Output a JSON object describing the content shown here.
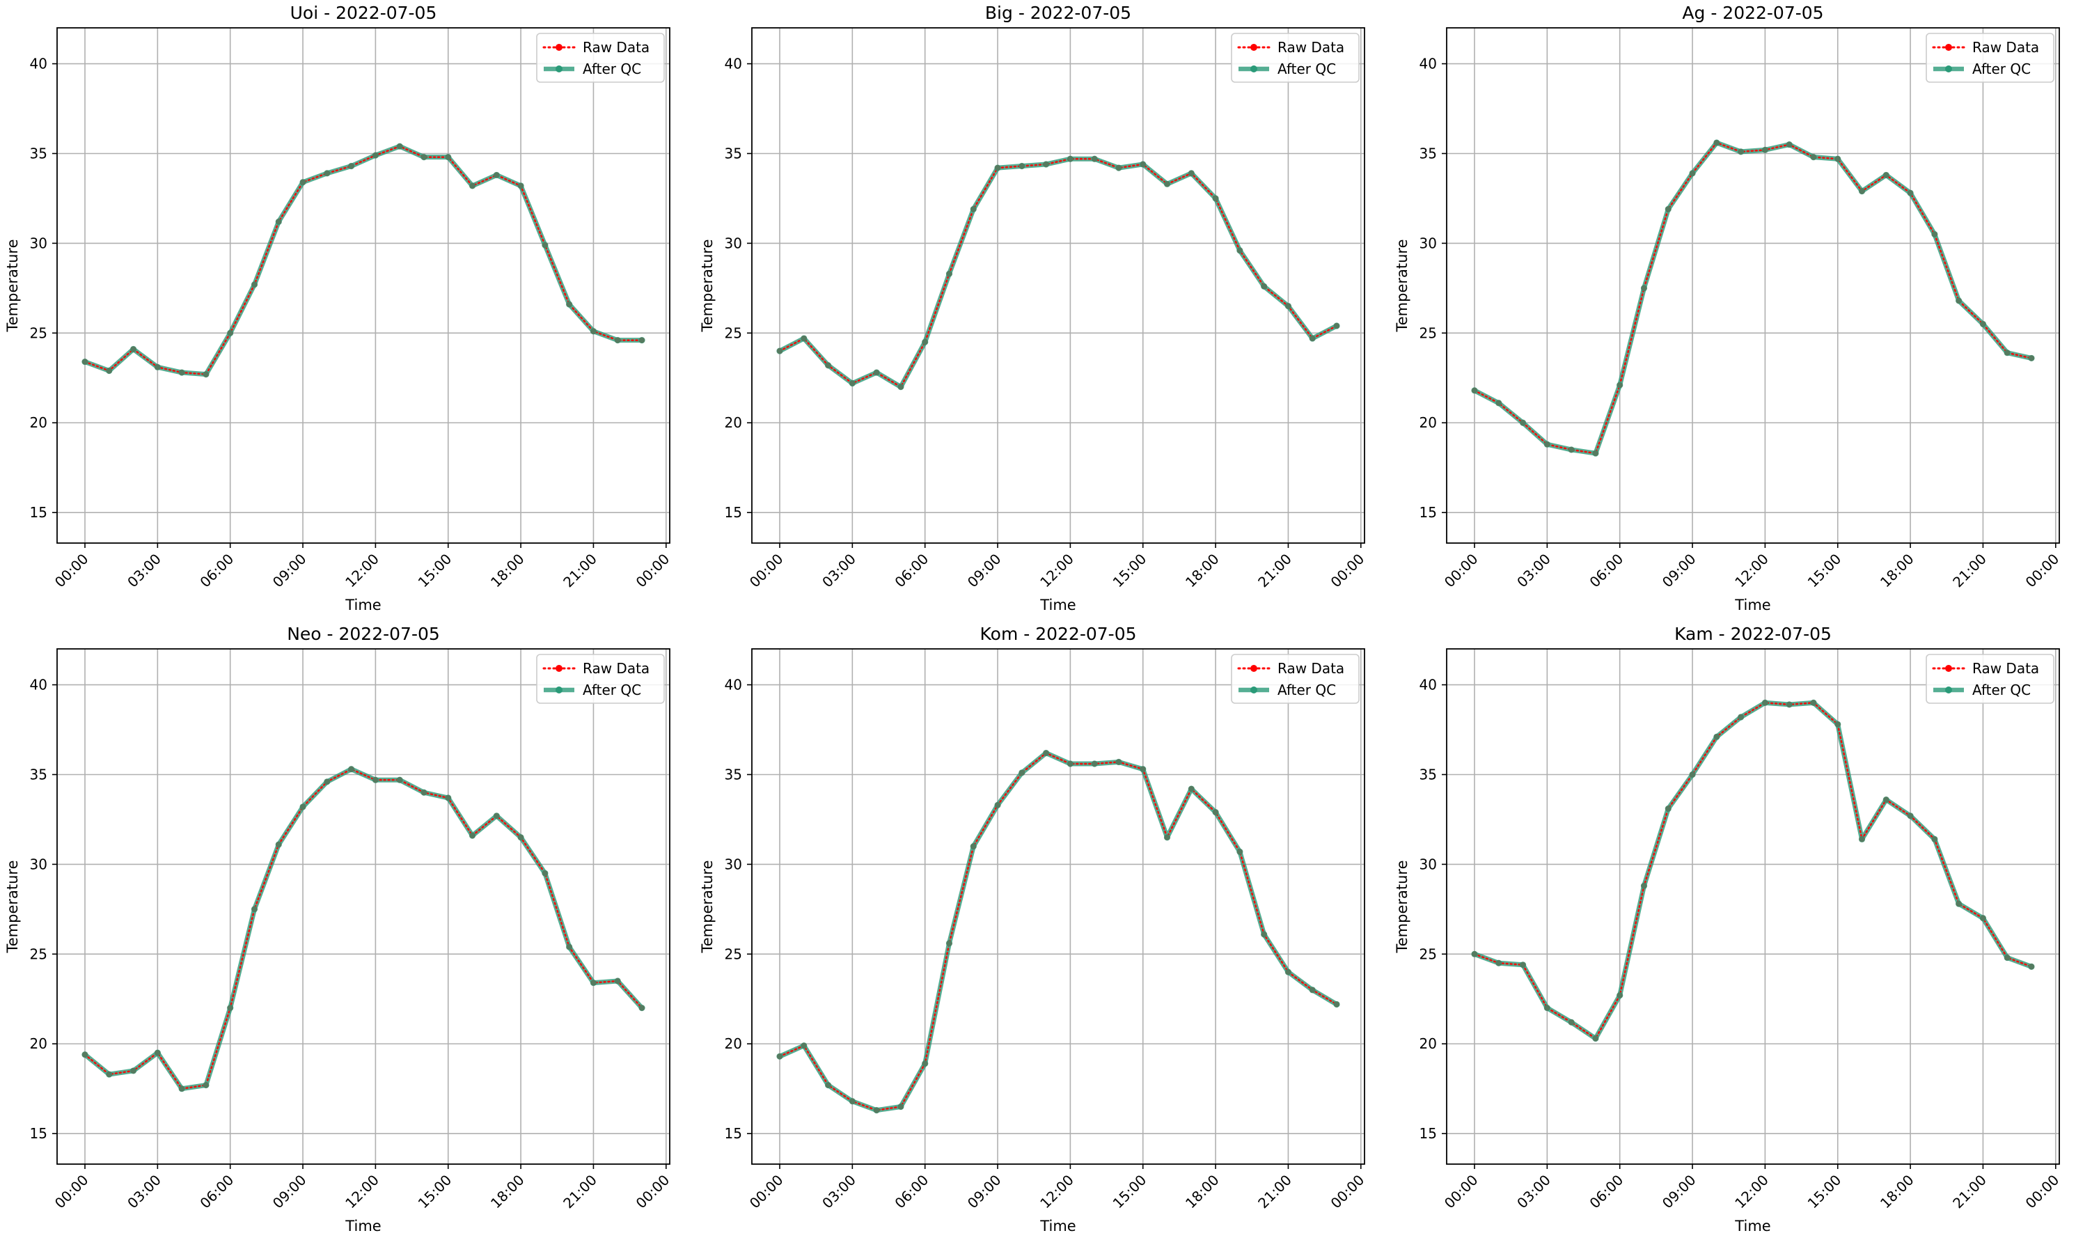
{
  "figure": {
    "background": "#ffffff"
  },
  "chart_data": [
    {
      "type": "line",
      "title": "Uoi - 2022-07-05",
      "xlabel": "Time",
      "ylabel": "Temperature",
      "xlim": [
        -1.15,
        24.15
      ],
      "ylim": [
        13.3,
        42.0
      ],
      "yticks": [
        15,
        20,
        25,
        30,
        35,
        40
      ],
      "xticks": [
        0,
        3,
        6,
        9,
        12,
        15,
        18,
        21,
        24
      ],
      "xtick_labels": [
        "00:00",
        "03:00",
        "06:00",
        "09:00",
        "12:00",
        "15:00",
        "18:00",
        "21:00",
        "00:00"
      ],
      "grid": true,
      "legend": "top-right",
      "x": [
        0,
        1,
        2,
        3,
        4,
        5,
        6,
        7,
        8,
        9,
        10,
        11,
        12,
        13,
        14,
        15,
        16,
        17,
        18,
        19,
        20,
        21,
        22,
        23
      ],
      "series": [
        {
          "name": "Raw Data",
          "color": "#ff0000",
          "style": "dotted",
          "values": [
            23.4,
            22.9,
            24.1,
            23.1,
            22.8,
            22.7,
            25.0,
            27.7,
            31.2,
            33.4,
            33.9,
            34.3,
            34.9,
            35.4,
            34.8,
            34.8,
            33.2,
            33.8,
            33.2,
            29.9,
            26.6,
            25.1,
            24.6,
            24.6
          ]
        },
        {
          "name": "After QC",
          "color": "#2a9a78",
          "style": "solid",
          "values": [
            23.4,
            22.9,
            24.1,
            23.1,
            22.8,
            22.7,
            25.0,
            27.7,
            31.2,
            33.4,
            33.9,
            34.3,
            34.9,
            35.4,
            34.8,
            34.8,
            33.2,
            33.8,
            33.2,
            29.9,
            26.6,
            25.1,
            24.6,
            24.6
          ]
        }
      ]
    },
    {
      "type": "line",
      "title": "Big - 2022-07-05",
      "xlabel": "Time",
      "ylabel": "Temperature",
      "xlim": [
        -1.15,
        24.15
      ],
      "ylim": [
        13.3,
        42.0
      ],
      "yticks": [
        15,
        20,
        25,
        30,
        35,
        40
      ],
      "xticks": [
        0,
        3,
        6,
        9,
        12,
        15,
        18,
        21,
        24
      ],
      "xtick_labels": [
        "00:00",
        "03:00",
        "06:00",
        "09:00",
        "12:00",
        "15:00",
        "18:00",
        "21:00",
        "00:00"
      ],
      "grid": true,
      "legend": "top-right",
      "x": [
        0,
        1,
        2,
        3,
        4,
        5,
        6,
        7,
        8,
        9,
        10,
        11,
        12,
        13,
        14,
        15,
        16,
        17,
        18,
        19,
        20,
        21,
        22,
        23
      ],
      "series": [
        {
          "name": "Raw Data",
          "color": "#ff0000",
          "style": "dotted",
          "values": [
            24.0,
            24.7,
            23.2,
            22.2,
            22.8,
            22.0,
            24.5,
            28.3,
            31.9,
            34.2,
            34.3,
            34.4,
            34.7,
            34.7,
            34.2,
            34.4,
            33.3,
            33.9,
            32.5,
            29.6,
            27.6,
            26.5,
            24.7,
            25.4
          ]
        },
        {
          "name": "After QC",
          "color": "#2a9a78",
          "style": "solid",
          "values": [
            24.0,
            24.7,
            23.2,
            22.2,
            22.8,
            22.0,
            24.5,
            28.3,
            31.9,
            34.2,
            34.3,
            34.4,
            34.7,
            34.7,
            34.2,
            34.4,
            33.3,
            33.9,
            32.5,
            29.6,
            27.6,
            26.5,
            24.7,
            25.4
          ]
        }
      ]
    },
    {
      "type": "line",
      "title": "Ag - 2022-07-05",
      "xlabel": "Time",
      "ylabel": "Temperature",
      "xlim": [
        -1.15,
        24.15
      ],
      "ylim": [
        13.3,
        42.0
      ],
      "yticks": [
        15,
        20,
        25,
        30,
        35,
        40
      ],
      "xticks": [
        0,
        3,
        6,
        9,
        12,
        15,
        18,
        21,
        24
      ],
      "xtick_labels": [
        "00:00",
        "03:00",
        "06:00",
        "09:00",
        "12:00",
        "15:00",
        "18:00",
        "21:00",
        "00:00"
      ],
      "grid": true,
      "legend": "top-right",
      "x": [
        0,
        1,
        2,
        3,
        4,
        5,
        6,
        7,
        8,
        9,
        10,
        11,
        12,
        13,
        14,
        15,
        16,
        17,
        18,
        19,
        20,
        21,
        22,
        23
      ],
      "series": [
        {
          "name": "Raw Data",
          "color": "#ff0000",
          "style": "dotted",
          "values": [
            21.8,
            21.1,
            20.0,
            18.8,
            18.5,
            18.3,
            22.1,
            27.5,
            31.9,
            33.9,
            35.6,
            35.1,
            35.2,
            35.5,
            34.8,
            34.7,
            32.9,
            33.8,
            32.8,
            30.5,
            26.8,
            25.5,
            23.9,
            23.6
          ]
        },
        {
          "name": "After QC",
          "color": "#2a9a78",
          "style": "solid",
          "values": [
            21.8,
            21.1,
            20.0,
            18.8,
            18.5,
            18.3,
            22.1,
            27.5,
            31.9,
            33.9,
            35.6,
            35.1,
            35.2,
            35.5,
            34.8,
            34.7,
            32.9,
            33.8,
            32.8,
            30.5,
            26.8,
            25.5,
            23.9,
            23.6
          ]
        }
      ]
    },
    {
      "type": "line",
      "title": "Neo - 2022-07-05",
      "xlabel": "Time",
      "ylabel": "Temperature",
      "xlim": [
        -1.15,
        24.15
      ],
      "ylim": [
        13.3,
        42.0
      ],
      "yticks": [
        15,
        20,
        25,
        30,
        35,
        40
      ],
      "xticks": [
        0,
        3,
        6,
        9,
        12,
        15,
        18,
        21,
        24
      ],
      "xtick_labels": [
        "00:00",
        "03:00",
        "06:00",
        "09:00",
        "12:00",
        "15:00",
        "18:00",
        "21:00",
        "00:00"
      ],
      "grid": true,
      "legend": "top-right",
      "x": [
        0,
        1,
        2,
        3,
        4,
        5,
        6,
        7,
        8,
        9,
        10,
        11,
        12,
        13,
        14,
        15,
        16,
        17,
        18,
        19,
        20,
        21,
        22,
        23
      ],
      "series": [
        {
          "name": "Raw Data",
          "color": "#ff0000",
          "style": "dotted",
          "values": [
            19.4,
            18.3,
            18.5,
            19.5,
            17.5,
            17.7,
            22.0,
            27.5,
            31.1,
            33.2,
            34.6,
            35.3,
            34.7,
            34.7,
            34.0,
            33.7,
            31.6,
            32.7,
            31.5,
            29.5,
            25.4,
            23.4,
            23.5,
            22.0
          ]
        },
        {
          "name": "After QC",
          "color": "#2a9a78",
          "style": "solid",
          "values": [
            19.4,
            18.3,
            18.5,
            19.5,
            17.5,
            17.7,
            22.0,
            27.5,
            31.1,
            33.2,
            34.6,
            35.3,
            34.7,
            34.7,
            34.0,
            33.7,
            31.6,
            32.7,
            31.5,
            29.5,
            25.4,
            23.4,
            23.5,
            22.0
          ]
        }
      ]
    },
    {
      "type": "line",
      "title": "Kom - 2022-07-05",
      "xlabel": "Time",
      "ylabel": "Temperature",
      "xlim": [
        -1.15,
        24.15
      ],
      "ylim": [
        13.3,
        42.0
      ],
      "yticks": [
        15,
        20,
        25,
        30,
        35,
        40
      ],
      "xticks": [
        0,
        3,
        6,
        9,
        12,
        15,
        18,
        21,
        24
      ],
      "xtick_labels": [
        "00:00",
        "03:00",
        "06:00",
        "09:00",
        "12:00",
        "15:00",
        "18:00",
        "21:00",
        "00:00"
      ],
      "grid": true,
      "legend": "top-right",
      "x": [
        0,
        1,
        2,
        3,
        4,
        5,
        6,
        7,
        8,
        9,
        10,
        11,
        12,
        13,
        14,
        15,
        16,
        17,
        18,
        19,
        20,
        21,
        22,
        23
      ],
      "series": [
        {
          "name": "Raw Data",
          "color": "#ff0000",
          "style": "dotted",
          "values": [
            19.3,
            19.9,
            17.7,
            16.8,
            16.3,
            16.5,
            18.9,
            25.6,
            31.0,
            33.3,
            35.1,
            36.2,
            35.6,
            35.6,
            35.7,
            35.3,
            31.5,
            34.2,
            32.9,
            30.7,
            26.1,
            24.0,
            23.0,
            22.2
          ]
        },
        {
          "name": "After QC",
          "color": "#2a9a78",
          "style": "solid",
          "values": [
            19.3,
            19.9,
            17.7,
            16.8,
            16.3,
            16.5,
            18.9,
            25.6,
            31.0,
            33.3,
            35.1,
            36.2,
            35.6,
            35.6,
            35.7,
            35.3,
            31.5,
            34.2,
            32.9,
            30.7,
            26.1,
            24.0,
            23.0,
            22.2
          ]
        }
      ]
    },
    {
      "type": "line",
      "title": "Kam - 2022-07-05",
      "xlabel": "Time",
      "ylabel": "Temperature",
      "xlim": [
        -1.15,
        24.15
      ],
      "ylim": [
        13.3,
        42.0
      ],
      "yticks": [
        15,
        20,
        25,
        30,
        35,
        40
      ],
      "xticks": [
        0,
        3,
        6,
        9,
        12,
        15,
        18,
        21,
        24
      ],
      "xtick_labels": [
        "00:00",
        "03:00",
        "06:00",
        "09:00",
        "12:00",
        "15:00",
        "18:00",
        "21:00",
        "00:00"
      ],
      "grid": true,
      "legend": "top-right",
      "x": [
        0,
        1,
        2,
        3,
        4,
        5,
        6,
        7,
        8,
        9,
        10,
        11,
        12,
        13,
        14,
        15,
        16,
        17,
        18,
        19,
        20,
        21,
        22,
        23
      ],
      "series": [
        {
          "name": "Raw Data",
          "color": "#ff0000",
          "style": "dotted",
          "values": [
            25.0,
            24.5,
            24.4,
            22.0,
            21.2,
            20.3,
            22.7,
            28.8,
            33.1,
            35.0,
            37.1,
            38.2,
            39.0,
            38.9,
            39.0,
            37.8,
            31.4,
            33.6,
            32.7,
            31.4,
            27.8,
            27.0,
            24.8,
            24.3
          ]
        },
        {
          "name": "After QC",
          "color": "#2a9a78",
          "style": "solid",
          "values": [
            25.0,
            24.5,
            24.4,
            22.0,
            21.2,
            20.3,
            22.7,
            28.8,
            33.1,
            35.0,
            37.1,
            38.2,
            39.0,
            38.9,
            39.0,
            37.8,
            31.4,
            33.6,
            32.7,
            31.4,
            27.8,
            27.0,
            24.8,
            24.3
          ]
        }
      ]
    }
  ]
}
